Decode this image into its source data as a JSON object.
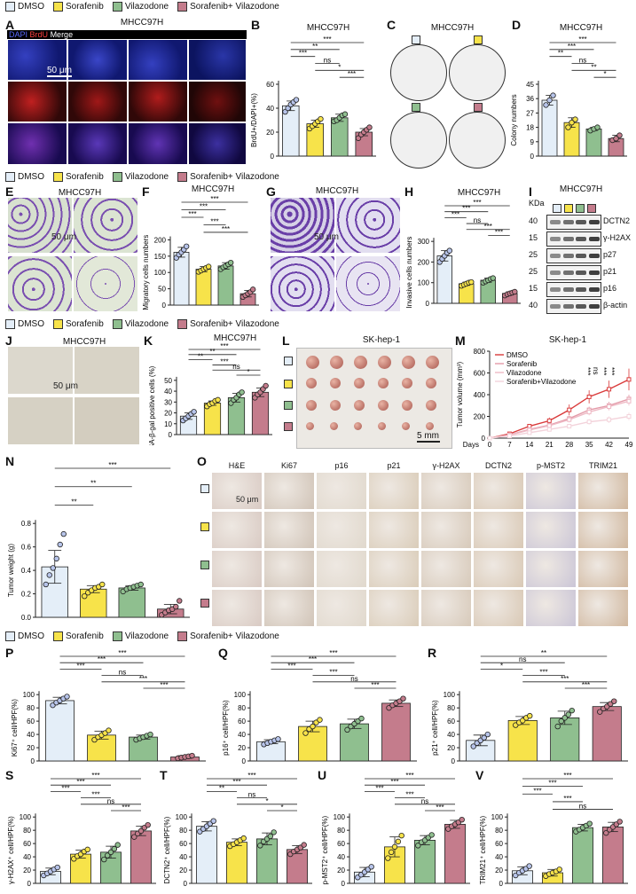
{
  "legend": {
    "items": [
      "DMSO",
      "Sorafenib",
      "Vilazodone",
      "Sorafenib+ Vilazodone"
    ]
  },
  "colors": {
    "dmso": "#e4eef8",
    "sor": "#f7e34a",
    "vil": "#8fbf8f",
    "combo": "#c47c8c",
    "dmso_dot": "#b7c4ea",
    "line_dmso": "#d93a3a",
    "line_sor": "#e39aa8",
    "line_vil": "#eebac5",
    "line_combo": "#f3d3db"
  },
  "panelA": {
    "label": "A",
    "title": "MHCC97H",
    "stain_dapi": "DAPI",
    "stain_brdu": "BrdU",
    "stain_merge": "Merge",
    "scalebar": "50 μm"
  },
  "panelB": {
    "label": "B",
    "title": "MHCC97H",
    "ylabel": "BrdU+/DAPI+(%)",
    "yticks": [
      "0",
      "20",
      "40",
      "60"
    ],
    "sig": [
      "***",
      "**",
      "***",
      "ns",
      "*",
      "***"
    ]
  },
  "panelC": {
    "label": "C",
    "title": "MHCC97H"
  },
  "panelD": {
    "label": "D",
    "title": "MHCC97H",
    "ylabel": "Colony numbers",
    "yticks": [
      "0",
      "9",
      "18",
      "27",
      "36",
      "45"
    ],
    "sig": [
      "***",
      "***",
      "**",
      "ns",
      "**",
      "*"
    ]
  },
  "panelE": {
    "label": "E",
    "title": "MHCC97H",
    "scalebar": "50 μm"
  },
  "panelF": {
    "label": "F",
    "title": "MHCC97H",
    "ylabel": "Migratory cells numbers",
    "yticks": [
      "0",
      "50",
      "100",
      "150",
      "200"
    ],
    "sig": [
      "***",
      "***",
      "***",
      "***",
      "***"
    ]
  },
  "panelG": {
    "label": "G",
    "title": "MHCC97H",
    "scalebar": "50 μm"
  },
  "panelH": {
    "label": "H",
    "title": "MHCC97H",
    "ylabel": "Invasive cells numbers",
    "yticks": [
      "0",
      "100",
      "200",
      "300"
    ],
    "sig": [
      "***",
      "***",
      "***",
      "ns",
      "***",
      "***"
    ]
  },
  "panelI": {
    "label": "I",
    "title": "MHCC97H",
    "kda": "KDa",
    "markers": [
      "40",
      "15",
      "25",
      "25",
      "15",
      "40"
    ],
    "proteins": [
      "DCTN2",
      "γ-H2AX",
      "p27",
      "p21",
      "p16",
      "β-actin"
    ]
  },
  "legend2": {
    "items": [
      "DMSO",
      "Sorafenib",
      "Vilazodone",
      "Sorafenib+ Vilazodone"
    ]
  },
  "panelJ": {
    "label": "J",
    "title": "MHCC97H",
    "scalebar": "50 μm"
  },
  "panelK": {
    "label": "K",
    "title": "MHCC97H",
    "ylabel": "SA-β-gal positive cells (%)",
    "yticks": [
      "0",
      "10",
      "20",
      "30",
      "40",
      "50"
    ],
    "sig": [
      "***",
      "**",
      "**",
      "***",
      "ns",
      "*"
    ]
  },
  "panelL": {
    "label": "L",
    "title": "SK-hep-1",
    "scalebar": "5 mm"
  },
  "panelM": {
    "label": "M",
    "title": "SK-hep-1",
    "ylabel": "Tumor volume (mm³)",
    "xlabel": "Days",
    "xticks": [
      "0",
      "7",
      "14",
      "21",
      "28",
      "35",
      "42",
      "49"
    ],
    "yticks": [
      "0",
      "200",
      "400",
      "600",
      "800"
    ],
    "legend": [
      "DMSO",
      "Sorafenib",
      "Vilazodone",
      "Sorafenib+Vilazodone"
    ],
    "sig": [
      "***",
      "ns",
      "***",
      "***"
    ]
  },
  "legend3": {
    "items": [
      "DMSO",
      "Sorafenib",
      "Vilazodone",
      "Sorafenib+ Vilazodone"
    ]
  },
  "panelN": {
    "label": "N",
    "ylabel": "Tumor weight (g)",
    "yticks": [
      "0.0",
      "0.2",
      "0.4",
      "0.6",
      "0.8"
    ],
    "sig": [
      "***",
      "**",
      "**"
    ]
  },
  "panelO": {
    "label": "O",
    "columns": [
      "H&E",
      "Ki67",
      "p16",
      "p21",
      "γ-H2AX",
      "DCTN2",
      "p-MST2",
      "TRIM21"
    ],
    "scalebar": "50 μm"
  },
  "legend4": {
    "items": [
      "DMSO",
      "Sorafenib",
      "Vilazodone",
      "Sorafenib+ Vilazodone"
    ]
  },
  "panelP": {
    "label": "P",
    "ylabel": "Ki67⁺ cell/HPF(%)",
    "yticks": [
      "0",
      "20",
      "40",
      "60",
      "80",
      "100"
    ],
    "sig": [
      "***",
      "***",
      "***",
      "ns",
      "***",
      "***"
    ]
  },
  "panelQ": {
    "label": "Q",
    "ylabel": "p16⁺ cell/HPF(%)",
    "yticks": [
      "0",
      "20",
      "40",
      "60",
      "80",
      "100"
    ],
    "sig": [
      "***",
      "***",
      "***",
      "***",
      "ns",
      "***"
    ]
  },
  "panelR": {
    "label": "R",
    "ylabel": "p21⁺ cell/HPF(%)",
    "yticks": [
      "0",
      "20",
      "40",
      "60",
      "80",
      "100"
    ],
    "sig": [
      "**",
      "ns",
      "*",
      "***",
      "***",
      "***"
    ]
  },
  "panelS": {
    "label": "S",
    "ylabel": "γ-H2AX⁺ cell/HPF(%)",
    "yticks": [
      "0",
      "20",
      "40",
      "60",
      "80",
      "100"
    ],
    "sig": [
      "***",
      "***",
      "***",
      "***",
      "ns",
      "***"
    ]
  },
  "panelT": {
    "label": "T",
    "ylabel": "DCTN2⁺ cell/HPF(%)",
    "yticks": [
      "0",
      "20",
      "40",
      "60",
      "80",
      "100"
    ],
    "sig": [
      "***",
      "***",
      "**",
      "ns",
      "*",
      "*"
    ]
  },
  "panelU": {
    "label": "U",
    "ylabel": "p-MST2⁺ cell/HPF(%)",
    "yticks": [
      "0",
      "20",
      "40",
      "60",
      "80",
      "100"
    ],
    "sig": [
      "***",
      "***",
      "***",
      "***",
      "ns",
      "***"
    ]
  },
  "panelV": {
    "label": "V",
    "ylabel": "TRIM21⁺ cell/HPF(%)",
    "yticks": [
      "0",
      "20",
      "40",
      "60",
      "80",
      "100"
    ],
    "sig": [
      "***",
      "***",
      "***",
      "***",
      "ns"
    ]
  },
  "chart_data": [
    {
      "id": "B",
      "type": "bar",
      "categories": [
        "DMSO",
        "Sorafenib",
        "Vilazodone",
        "Sorafenib+Vilazodone"
      ],
      "values": [
        42,
        27,
        32,
        20
      ],
      "errors": [
        4,
        3,
        3,
        3
      ],
      "ylim": [
        0,
        60
      ],
      "ylabel": "BrdU+/DAPI+(%)",
      "title": "MHCC97H",
      "points": [
        [
          37,
          40,
          43,
          45,
          47
        ],
        [
          23,
          25,
          27,
          29,
          31
        ],
        [
          29,
          30,
          32,
          34,
          35
        ],
        [
          15,
          18,
          20,
          22,
          24
        ]
      ]
    },
    {
      "id": "D",
      "type": "bar",
      "categories": [
        "DMSO",
        "Sorafenib",
        "Vilazodone",
        "Sorafenib+Vilazodone"
      ],
      "values": [
        35,
        21,
        17,
        11
      ],
      "errors": [
        3,
        3,
        1,
        2
      ],
      "ylim": [
        0,
        45
      ],
      "ylabel": "Colony numbers",
      "title": "MHCC97H",
      "points": [
        [
          32,
          35,
          38
        ],
        [
          18,
          21,
          23
        ],
        [
          16,
          17,
          18
        ],
        [
          10,
          11,
          13
        ]
      ]
    },
    {
      "id": "F",
      "type": "bar",
      "categories": [
        "DMSO",
        "Sorafenib",
        "Vilazodone",
        "Sorafenib+Vilazodone"
      ],
      "values": [
        162,
        110,
        120,
        35
      ],
      "errors": [
        15,
        8,
        10,
        10
      ],
      "ylim": [
        0,
        200
      ],
      "ylabel": "Migratory cells numbers",
      "title": "MHCC97H",
      "points": [
        [
          145,
          155,
          162,
          170,
          180
        ],
        [
          102,
          106,
          110,
          114,
          118
        ],
        [
          110,
          116,
          120,
          125,
          130
        ],
        [
          25,
          30,
          35,
          40,
          48
        ]
      ]
    },
    {
      "id": "H",
      "type": "bar",
      "categories": [
        "DMSO",
        "Sorafenib",
        "Vilazodone",
        "Sorafenib+Vilazodone"
      ],
      "values": [
        230,
        95,
        112,
        48
      ],
      "errors": [
        25,
        8,
        10,
        8
      ],
      "ylim": [
        0,
        300
      ],
      "ylabel": "Invasive cells numbers",
      "title": "MHCC97H",
      "points": [
        [
          200,
          215,
          230,
          245,
          255
        ],
        [
          85,
          90,
          95,
          100,
          103
        ],
        [
          100,
          106,
          112,
          118,
          122
        ],
        [
          38,
          44,
          48,
          52,
          56
        ]
      ]
    },
    {
      "id": "K",
      "type": "bar",
      "categories": [
        "DMSO",
        "Sorafenib",
        "Vilazodone",
        "Sorafenib+Vilazodone"
      ],
      "values": [
        17,
        29,
        34,
        39
      ],
      "errors": [
        3,
        2,
        4,
        4
      ],
      "ylim": [
        0,
        50
      ],
      "ylabel": "SA-β-gal positive cells (%)",
      "title": "MHCC97H",
      "points": [
        [
          13,
          15,
          17,
          19,
          21
        ],
        [
          26,
          28,
          29,
          31,
          32
        ],
        [
          29,
          32,
          34,
          37,
          39
        ],
        [
          34,
          37,
          39,
          42,
          45
        ]
      ]
    },
    {
      "id": "M",
      "type": "line",
      "x": [
        0,
        7,
        14,
        21,
        28,
        35,
        42,
        49
      ],
      "xlabel": "Days",
      "ylabel": "Tumor volume (mm³)",
      "ylim": [
        0,
        800
      ],
      "title": "SK-hep-1",
      "series": [
        {
          "name": "DMSO",
          "values": [
            0,
            40,
            110,
            160,
            260,
            380,
            450,
            540
          ],
          "errors": [
            0,
            10,
            20,
            30,
            50,
            60,
            80,
            100
          ]
        },
        {
          "name": "Sorafenib",
          "values": [
            0,
            30,
            80,
            120,
            180,
            260,
            300,
            360
          ],
          "errors": [
            0,
            8,
            15,
            20,
            25,
            30,
            35,
            40
          ]
        },
        {
          "name": "Vilazodone",
          "values": [
            0,
            28,
            75,
            115,
            170,
            240,
            290,
            340
          ],
          "errors": [
            0,
            8,
            15,
            20,
            25,
            30,
            35,
            40
          ]
        },
        {
          "name": "Sorafenib+Vilazodone",
          "values": [
            0,
            20,
            50,
            80,
            110,
            150,
            170,
            200
          ],
          "errors": [
            0,
            5,
            10,
            15,
            20,
            25,
            30,
            35
          ]
        }
      ]
    },
    {
      "id": "N",
      "type": "bar",
      "categories": [
        "DMSO",
        "Sorafenib",
        "Vilazodone",
        "Sorafenib+Vilazodone"
      ],
      "values": [
        0.43,
        0.24,
        0.25,
        0.07
      ],
      "errors": [
        0.14,
        0.03,
        0.02,
        0.04
      ],
      "ylim": [
        0,
        0.8
      ],
      "ylabel": "Tumor weight (g)",
      "points": [
        [
          0.28,
          0.36,
          0.42,
          0.5,
          0.62,
          0.71
        ],
        [
          0.18,
          0.21,
          0.23,
          0.25,
          0.26,
          0.28
        ],
        [
          0.22,
          0.24,
          0.25,
          0.26,
          0.27,
          0.28
        ],
        [
          0.02,
          0.04,
          0.06,
          0.07,
          0.09,
          0.14
        ]
      ]
    },
    {
      "id": "P",
      "type": "bar",
      "categories": [
        "DMSO",
        "Sorafenib",
        "Vilazodone",
        "Sorafenib+Vilazodone"
      ],
      "values": [
        91,
        39,
        36,
        6
      ],
      "errors": [
        5,
        6,
        3,
        2
      ],
      "ylim": [
        0,
        100
      ],
      "ylabel": "Ki67⁺ cell/HPF(%)",
      "points": [
        [
          84,
          88,
          91,
          94,
          97
        ],
        [
          32,
          36,
          39,
          42,
          46
        ],
        [
          32,
          34,
          36,
          38,
          40
        ],
        [
          4,
          5,
          6,
          7,
          8
        ]
      ]
    },
    {
      "id": "Q",
      "type": "bar",
      "categories": [
        "DMSO",
        "Sorafenib",
        "Vilazodone",
        "Sorafenib+Vilazodone"
      ],
      "values": [
        29,
        52,
        56,
        87
      ],
      "errors": [
        3,
        8,
        7,
        5
      ],
      "ylim": [
        0,
        100
      ],
      "ylabel": "p16⁺ cell/HPF(%)",
      "points": [
        [
          25,
          27,
          29,
          31,
          33
        ],
        [
          42,
          48,
          52,
          58,
          62
        ],
        [
          47,
          52,
          56,
          60,
          64
        ],
        [
          80,
          84,
          87,
          90,
          94
        ]
      ]
    },
    {
      "id": "R",
      "type": "bar",
      "categories": [
        "DMSO",
        "Sorafenib",
        "Vilazodone",
        "Sorafenib+Vilazodone"
      ],
      "values": [
        31,
        61,
        65,
        82
      ],
      "errors": [
        8,
        6,
        10,
        6
      ],
      "ylim": [
        0,
        100
      ],
      "ylabel": "p21⁺ cell/HPF(%)",
      "points": [
        [
          22,
          27,
          31,
          35,
          40
        ],
        [
          54,
          58,
          61,
          65,
          68
        ],
        [
          52,
          60,
          65,
          70,
          76
        ],
        [
          74,
          79,
          82,
          86,
          90
        ]
      ]
    },
    {
      "id": "S",
      "type": "bar",
      "categories": [
        "DMSO",
        "Sorafenib",
        "Vilazodone",
        "Sorafenib+Vilazodone"
      ],
      "values": [
        18,
        44,
        47,
        79
      ],
      "errors": [
        5,
        6,
        9,
        7
      ],
      "ylim": [
        0,
        100
      ],
      "ylabel": "γ-H2AX⁺ cell/HPF(%)",
      "points": [
        [
          12,
          15,
          18,
          21,
          24
        ],
        [
          37,
          41,
          44,
          48,
          51
        ],
        [
          36,
          42,
          47,
          52,
          58
        ],
        [
          70,
          75,
          79,
          84,
          88
        ]
      ]
    },
    {
      "id": "T",
      "type": "bar",
      "categories": [
        "DMSO",
        "Sorafenib",
        "Vilazodone",
        "Sorafenib+Vilazodone"
      ],
      "values": [
        86,
        62,
        67,
        51
      ],
      "errors": [
        7,
        5,
        9,
        6
      ],
      "ylim": [
        0,
        100
      ],
      "ylabel": "DCTN2⁺ cell/HPF(%)",
      "points": [
        [
          78,
          82,
          86,
          90,
          94
        ],
        [
          56,
          59,
          62,
          65,
          68
        ],
        [
          57,
          63,
          67,
          71,
          77
        ],
        [
          44,
          48,
          51,
          54,
          58
        ]
      ]
    },
    {
      "id": "U",
      "type": "bar",
      "categories": [
        "DMSO",
        "Sorafenib",
        "Vilazodone",
        "Sorafenib+Vilazodone"
      ],
      "values": [
        17,
        55,
        65,
        89
      ],
      "errors": [
        7,
        15,
        7,
        6
      ],
      "ylim": [
        0,
        100
      ],
      "ylabel": "p-MST2⁺ cell/HPF(%)",
      "points": [
        [
          9,
          13,
          17,
          21,
          25
        ],
        [
          38,
          47,
          55,
          63,
          72
        ],
        [
          57,
          62,
          65,
          69,
          73
        ],
        [
          82,
          86,
          89,
          92,
          96
        ]
      ]
    },
    {
      "id": "V",
      "type": "bar",
      "categories": [
        "DMSO",
        "Sorafenib",
        "Vilazodone",
        "Sorafenib+Vilazodone"
      ],
      "values": [
        19,
        16,
        84,
        85
      ],
      "errors": [
        6,
        5,
        5,
        7
      ],
      "ylim": [
        0,
        100
      ],
      "ylabel": "TRIM21⁺ cell/HPF(%)",
      "points": [
        [
          12,
          16,
          19,
          22,
          26
        ],
        [
          11,
          14,
          16,
          18,
          21
        ],
        [
          78,
          81,
          84,
          87,
          90
        ],
        [
          76,
          81,
          85,
          89,
          93
        ]
      ]
    }
  ]
}
